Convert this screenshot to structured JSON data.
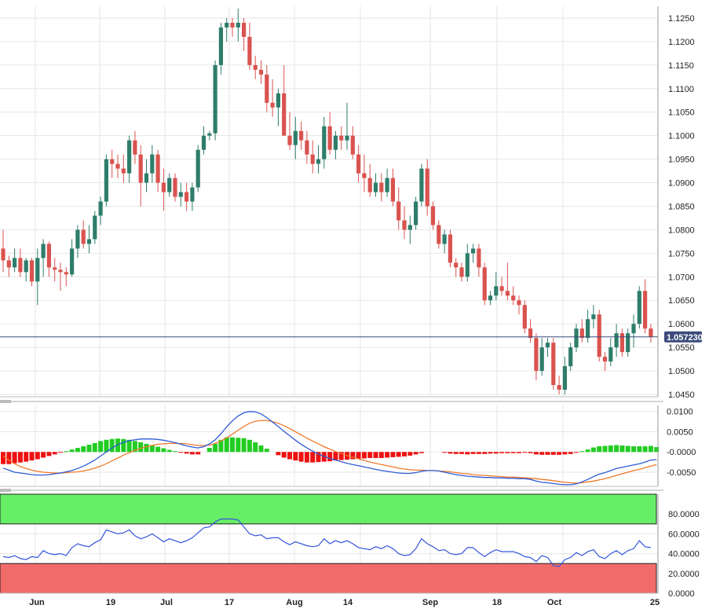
{
  "current_price_label": "1.057230",
  "colors": {
    "bull": "#2e7d6b",
    "bear": "#d9534f",
    "grid": "#e6e6e6",
    "price_line": "#3a4a7a",
    "macd": "#2f5bd6",
    "signal": "#f07a2a",
    "hist_pos": "#22cc22",
    "hist_neg": "#ee1111",
    "rsi": "#3355dd",
    "overbought": "#66ee66",
    "oversold": "#f26b6b"
  },
  "chart_data": [
    {
      "type": "candlestick",
      "title": "",
      "ylim": [
        1.0445,
        1.1275
      ],
      "y_ticks": [
        "1.1250",
        "1.1200",
        "1.1150",
        "1.1100",
        "1.1050",
        "1.1000",
        "1.0950",
        "1.0900",
        "1.0850",
        "1.0800",
        "1.0750",
        "1.0700",
        "1.0650",
        "1.0600",
        "1.0550",
        "1.0500",
        "1.0450"
      ],
      "x_ticks": [
        "Jun",
        "19",
        "Jul",
        "17",
        "Aug",
        "14",
        "Sep",
        "18",
        "Oct",
        "25"
      ],
      "current_price": 1.05723,
      "candles": [
        [
          1.076,
          1.08,
          1.071,
          1.0735
        ],
        [
          1.0735,
          1.0745,
          1.07,
          1.072
        ],
        [
          1.072,
          1.076,
          1.071,
          1.074
        ],
        [
          1.074,
          1.076,
          1.07,
          1.071
        ],
        [
          1.071,
          1.074,
          1.069,
          1.0735
        ],
        [
          1.0735,
          1.074,
          1.068,
          1.069
        ],
        [
          1.069,
          1.076,
          1.064,
          1.074
        ],
        [
          1.074,
          1.078,
          1.07,
          1.077
        ],
        [
          1.077,
          1.0775,
          1.07,
          1.072
        ],
        [
          1.072,
          1.074,
          1.069,
          1.0715
        ],
        [
          1.0715,
          1.073,
          1.067,
          1.071
        ],
        [
          1.071,
          1.072,
          1.068,
          1.0705
        ],
        [
          1.0705,
          1.078,
          1.07,
          1.076
        ],
        [
          1.076,
          1.081,
          1.074,
          1.08
        ],
        [
          1.08,
          1.082,
          1.076,
          1.077
        ],
        [
          1.077,
          1.081,
          1.075,
          1.078
        ],
        [
          1.078,
          1.084,
          1.077,
          1.083
        ],
        [
          1.083,
          1.087,
          1.081,
          1.086
        ],
        [
          1.086,
          1.096,
          1.085,
          1.095
        ],
        [
          1.095,
          1.097,
          1.091,
          1.094
        ],
        [
          1.094,
          1.096,
          1.091,
          1.093
        ],
        [
          1.093,
          1.096,
          1.09,
          1.092
        ],
        [
          1.092,
          1.1,
          1.09,
          1.099
        ],
        [
          1.099,
          1.101,
          1.094,
          1.096
        ],
        [
          1.096,
          1.098,
          1.085,
          1.09
        ],
        [
          1.09,
          1.095,
          1.088,
          1.092
        ],
        [
          1.092,
          1.098,
          1.09,
          1.096
        ],
        [
          1.096,
          1.097,
          1.088,
          1.09
        ],
        [
          1.09,
          1.093,
          1.084,
          1.088
        ],
        [
          1.088,
          1.092,
          1.087,
          1.091
        ],
        [
          1.091,
          1.092,
          1.086,
          1.087
        ],
        [
          1.087,
          1.09,
          1.085,
          1.088
        ],
        [
          1.088,
          1.09,
          1.084,
          1.086
        ],
        [
          1.086,
          1.09,
          1.084,
          1.089
        ],
        [
          1.089,
          1.098,
          1.088,
          1.097
        ],
        [
          1.097,
          1.102,
          1.096,
          1.1
        ],
        [
          1.1,
          1.101,
          1.099,
          1.1005
        ],
        [
          1.1005,
          1.116,
          1.099,
          1.115
        ],
        [
          1.115,
          1.124,
          1.113,
          1.123
        ],
        [
          1.123,
          1.125,
          1.12,
          1.124
        ],
        [
          1.124,
          1.125,
          1.121,
          1.123
        ],
        [
          1.123,
          1.127,
          1.12,
          1.124
        ],
        [
          1.124,
          1.125,
          1.118,
          1.121
        ],
        [
          1.121,
          1.124,
          1.114,
          1.115
        ],
        [
          1.115,
          1.117,
          1.112,
          1.114
        ],
        [
          1.114,
          1.116,
          1.111,
          1.113
        ],
        [
          1.113,
          1.115,
          1.105,
          1.107
        ],
        [
          1.107,
          1.112,
          1.104,
          1.106
        ],
        [
          1.106,
          1.11,
          1.102,
          1.109
        ],
        [
          1.109,
          1.115,
          1.1,
          1.1
        ],
        [
          1.1,
          1.105,
          1.097,
          1.098
        ],
        [
          1.098,
          1.104,
          1.095,
          1.101
        ],
        [
          1.101,
          1.103,
          1.097,
          1.099
        ],
        [
          1.099,
          1.101,
          1.094,
          1.096
        ],
        [
          1.096,
          1.099,
          1.092,
          1.094
        ],
        [
          1.094,
          1.098,
          1.092,
          1.095
        ],
        [
          1.095,
          1.104,
          1.093,
          1.102
        ],
        [
          1.102,
          1.105,
          1.096,
          1.097
        ],
        [
          1.097,
          1.101,
          1.095,
          1.1
        ],
        [
          1.1,
          1.102,
          1.097,
          1.099
        ],
        [
          1.099,
          1.107,
          1.097,
          1.1
        ],
        [
          1.1,
          1.102,
          1.095,
          1.096
        ],
        [
          1.096,
          1.098,
          1.09,
          1.092
        ],
        [
          1.092,
          1.096,
          1.088,
          1.091
        ],
        [
          1.091,
          1.094,
          1.087,
          1.088
        ],
        [
          1.088,
          1.092,
          1.087,
          1.09
        ],
        [
          1.09,
          1.092,
          1.086,
          1.088
        ],
        [
          1.088,
          1.093,
          1.087,
          1.091
        ],
        [
          1.091,
          1.093,
          1.085,
          1.086
        ],
        [
          1.086,
          1.089,
          1.08,
          1.082
        ],
        [
          1.082,
          1.085,
          1.078,
          1.08
        ],
        [
          1.08,
          1.083,
          1.077,
          1.081
        ],
        [
          1.081,
          1.087,
          1.08,
          1.086
        ],
        [
          1.086,
          1.094,
          1.085,
          1.093
        ],
        [
          1.093,
          1.095,
          1.083,
          1.085
        ],
        [
          1.085,
          1.086,
          1.08,
          1.081
        ],
        [
          1.081,
          1.082,
          1.076,
          1.077
        ],
        [
          1.077,
          1.08,
          1.075,
          1.079
        ],
        [
          1.079,
          1.08,
          1.072,
          1.073
        ],
        [
          1.073,
          1.074,
          1.07,
          1.072
        ],
        [
          1.072,
          1.073,
          1.069,
          1.07
        ],
        [
          1.07,
          1.077,
          1.069,
          1.075
        ],
        [
          1.075,
          1.077,
          1.073,
          1.076
        ],
        [
          1.076,
          1.077,
          1.07,
          1.072
        ],
        [
          1.072,
          1.073,
          1.064,
          1.065
        ],
        [
          1.065,
          1.067,
          1.064,
          1.066
        ],
        [
          1.066,
          1.071,
          1.065,
          1.068
        ],
        [
          1.068,
          1.07,
          1.066,
          1.067
        ],
        [
          1.067,
          1.073,
          1.065,
          1.066
        ],
        [
          1.066,
          1.068,
          1.064,
          1.065
        ],
        [
          1.065,
          1.066,
          1.062,
          1.064
        ],
        [
          1.064,
          1.065,
          1.058,
          1.059
        ],
        [
          1.059,
          1.061,
          1.056,
          1.057
        ],
        [
          1.057,
          1.058,
          1.048,
          1.05
        ],
        [
          1.05,
          1.057,
          1.049,
          1.055
        ],
        [
          1.055,
          1.057,
          1.053,
          1.056
        ],
        [
          1.056,
          1.057,
          1.046,
          1.047
        ],
        [
          1.047,
          1.049,
          1.045,
          1.046
        ],
        [
          1.046,
          1.053,
          1.045,
          1.051
        ],
        [
          1.051,
          1.056,
          1.05,
          1.055
        ],
        [
          1.055,
          1.06,
          1.054,
          1.059
        ],
        [
          1.059,
          1.061,
          1.056,
          1.057
        ],
        [
          1.057,
          1.063,
          1.056,
          1.061
        ],
        [
          1.061,
          1.064,
          1.059,
          1.062
        ],
        [
          1.062,
          1.063,
          1.052,
          1.053
        ],
        [
          1.053,
          1.054,
          1.05,
          1.052
        ],
        [
          1.052,
          1.057,
          1.051,
          1.055
        ],
        [
          1.055,
          1.06,
          1.053,
          1.058
        ],
        [
          1.058,
          1.059,
          1.053,
          1.054
        ],
        [
          1.054,
          1.059,
          1.053,
          1.058
        ],
        [
          1.058,
          1.062,
          1.055,
          1.06
        ],
        [
          1.06,
          1.068,
          1.059,
          1.067
        ],
        [
          1.067,
          1.0695,
          1.058,
          1.059
        ],
        [
          1.059,
          1.06,
          1.056,
          1.0572
        ]
      ]
    },
    {
      "type": "macd",
      "ylim": [
        -0.0085,
        0.0115
      ],
      "y_ticks": [
        "0.0100",
        "0.0050",
        "-0.0000",
        "-0.0050"
      ],
      "macd": [
        -0.004,
        -0.0045,
        -0.005,
        -0.0052,
        -0.0054,
        -0.0056,
        -0.0057,
        -0.0057,
        -0.0056,
        -0.0054,
        -0.0052,
        -0.0049,
        -0.0046,
        -0.0041,
        -0.0035,
        -0.0028,
        -0.002,
        -0.001,
        0.0,
        0.001,
        0.0018,
        0.0024,
        0.0028,
        0.003,
        0.0032,
        0.0032,
        0.0032,
        0.0031,
        0.0029,
        0.0026,
        0.0023,
        0.0019,
        0.0015,
        0.0012,
        0.001,
        0.0013,
        0.002,
        0.003,
        0.0045,
        0.0062,
        0.0077,
        0.0089,
        0.0097,
        0.01,
        0.0099,
        0.0094,
        0.0085,
        0.0074,
        0.0063,
        0.0051,
        0.004,
        0.0029,
        0.0019,
        0.001,
        0.0002,
        -0.0005,
        -0.0011,
        -0.0016,
        -0.002,
        -0.0024,
        -0.0028,
        -0.0031,
        -0.0034,
        -0.0037,
        -0.004,
        -0.0043,
        -0.0046,
        -0.0048,
        -0.005,
        -0.0052,
        -0.0053,
        -0.0053,
        -0.0051,
        -0.0048,
        -0.0046,
        -0.0046,
        -0.0047,
        -0.005,
        -0.0053,
        -0.0056,
        -0.0058,
        -0.006,
        -0.0061,
        -0.0062,
        -0.0063,
        -0.0063,
        -0.0064,
        -0.0064,
        -0.0065,
        -0.0065,
        -0.0066,
        -0.0066,
        -0.0068,
        -0.0072,
        -0.0075,
        -0.0076,
        -0.0078,
        -0.008,
        -0.0081,
        -0.0081,
        -0.0079,
        -0.0074,
        -0.0068,
        -0.0061,
        -0.0055,
        -0.0051,
        -0.0046,
        -0.0041,
        -0.0038,
        -0.0035,
        -0.0032,
        -0.0029,
        -0.0025,
        -0.002,
        -0.0019
      ],
      "signal": [
        -0.001,
        -0.002,
        -0.0029,
        -0.0036,
        -0.0041,
        -0.0045,
        -0.0048,
        -0.005,
        -0.0051,
        -0.0052,
        -0.0052,
        -0.0051,
        -0.005,
        -0.0049,
        -0.0047,
        -0.0044,
        -0.004,
        -0.0035,
        -0.0029,
        -0.0022,
        -0.0015,
        -0.0008,
        -0.0002,
        0.0004,
        0.0009,
        0.0013,
        0.0016,
        0.0019,
        0.002,
        0.0021,
        0.0021,
        0.0021,
        0.002,
        0.0018,
        0.0016,
        0.0016,
        0.0017,
        0.0021,
        0.0027,
        0.0035,
        0.0044,
        0.0054,
        0.0063,
        0.0071,
        0.0076,
        0.0078,
        0.0078,
        0.0075,
        0.0071,
        0.0065,
        0.0058,
        0.005,
        0.0042,
        0.0034,
        0.0027,
        0.002,
        0.0013,
        0.0007,
        0.0001,
        -0.0004,
        -0.0009,
        -0.0013,
        -0.0017,
        -0.0021,
        -0.0025,
        -0.0028,
        -0.0031,
        -0.0034,
        -0.0037,
        -0.004,
        -0.0042,
        -0.0044,
        -0.0045,
        -0.0045,
        -0.0046,
        -0.0046,
        -0.0047,
        -0.0048,
        -0.0049,
        -0.0051,
        -0.0053,
        -0.0054,
        -0.0056,
        -0.0057,
        -0.0058,
        -0.0059,
        -0.006,
        -0.0061,
        -0.0062,
        -0.0062,
        -0.0063,
        -0.0064,
        -0.0065,
        -0.0066,
        -0.0068,
        -0.0069,
        -0.0071,
        -0.0073,
        -0.0075,
        -0.0076,
        -0.0077,
        -0.0076,
        -0.0074,
        -0.0072,
        -0.0069,
        -0.0066,
        -0.0062,
        -0.0058,
        -0.0054,
        -0.005,
        -0.0046,
        -0.0043,
        -0.0039,
        -0.0035,
        -0.0031
      ],
      "histogram": [
        -0.003,
        -0.003,
        -0.0028,
        -0.0026,
        -0.0024,
        -0.0021,
        -0.0018,
        -0.0014,
        -0.001,
        -0.0006,
        -0.0002,
        0.0002,
        0.0006,
        0.001,
        0.0014,
        0.0018,
        0.0022,
        0.0027,
        0.003,
        0.0032,
        0.0033,
        0.0032,
        0.003,
        0.0027,
        0.0024,
        0.002,
        0.0017,
        0.0013,
        0.0009,
        0.0005,
        0.0002,
        -0.0001,
        -0.0004,
        -0.0006,
        -0.0006,
        0.0,
        0.001,
        0.002,
        0.003,
        0.0036,
        0.0036,
        0.0035,
        0.0034,
        0.003,
        0.0024,
        0.0016,
        0.0008,
        0.0,
        -0.0008,
        -0.0014,
        -0.0018,
        -0.0021,
        -0.0024,
        -0.0026,
        -0.0026,
        -0.0025,
        -0.0024,
        -0.0023,
        -0.0021,
        -0.002,
        -0.0019,
        -0.0018,
        -0.0017,
        -0.0016,
        -0.0015,
        -0.0015,
        -0.0015,
        -0.0014,
        -0.0013,
        -0.0012,
        -0.0011,
        -0.0009,
        -0.0006,
        -0.0003,
        0.0,
        0.0,
        0.0,
        -0.0002,
        -0.0004,
        -0.0005,
        -0.0005,
        -0.0006,
        -0.0005,
        -0.0005,
        -0.0005,
        -0.0004,
        -0.0004,
        -0.0003,
        -0.0003,
        -0.0003,
        -0.0003,
        -0.0002,
        -0.0003,
        -0.0006,
        -0.0007,
        -0.0007,
        -0.0007,
        -0.0007,
        -0.0006,
        -0.0005,
        -0.0002,
        0.0002,
        0.0006,
        0.0011,
        0.0014,
        0.0015,
        0.0016,
        0.0017,
        0.0016,
        0.0015,
        0.0014,
        0.0014,
        0.0014,
        0.0015,
        0.0012
      ]
    },
    {
      "type": "rsi",
      "ylim": [
        0,
        100
      ],
      "y_ticks": [
        "80.0000",
        "60.0000",
        "40.0000",
        "20.0000",
        "0.0000"
      ],
      "overbought_band": [
        70,
        100
      ],
      "oversold_band": [
        0,
        30
      ],
      "values": [
        37,
        36,
        38,
        35,
        34,
        37,
        36,
        43,
        40,
        39,
        40,
        38,
        46,
        50,
        48,
        47,
        51,
        54,
        64,
        62,
        60,
        61,
        64,
        58,
        55,
        57,
        60,
        56,
        52,
        55,
        53,
        51,
        53,
        56,
        61,
        66,
        67,
        72,
        75,
        75,
        75,
        74,
        67,
        60,
        58,
        59,
        55,
        56,
        56,
        52,
        49,
        52,
        50,
        48,
        47,
        48,
        55,
        50,
        53,
        51,
        53,
        50,
        46,
        45,
        44,
        47,
        45,
        48,
        45,
        40,
        38,
        39,
        45,
        55,
        50,
        47,
        43,
        44,
        40,
        39,
        40,
        46,
        46,
        41,
        37,
        41,
        44,
        42,
        42,
        42,
        40,
        37,
        36,
        32,
        38,
        36,
        28,
        27,
        34,
        36,
        41,
        38,
        42,
        44,
        37,
        35,
        40,
        43,
        39,
        43,
        45,
        53,
        47,
        46
      ]
    }
  ]
}
